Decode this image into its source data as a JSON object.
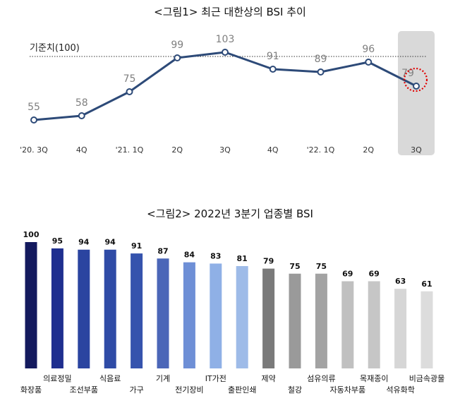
{
  "chart_data": [
    {
      "type": "line",
      "title": "<그림1> 최근 대한상의 BSI 추이",
      "categories": [
        "'20. 3Q",
        "4Q",
        "'21. 1Q",
        "2Q",
        "3Q",
        "4Q",
        "'22. 1Q",
        "2Q",
        "3Q"
      ],
      "values": [
        55,
        58,
        75,
        99,
        103,
        91,
        89,
        96,
        79
      ],
      "reference_line": {
        "label": "기준치(100)",
        "value": 100
      },
      "highlight": {
        "category": "3Q",
        "value": 79
      },
      "ylim": [
        45,
        110
      ],
      "colors": {
        "line": "#2d4a78",
        "label": "#7f7f7f",
        "highlight_box": "#d9d9d9",
        "highlight_circle": "#e00000"
      }
    },
    {
      "type": "bar",
      "title": "<그림2> 2022년 3분기 업종별 BSI",
      "categories": [
        "화장품",
        "의료정밀",
        "조선부품",
        "식음료",
        "가구",
        "기계",
        "전기장비",
        "IT가전",
        "출판인쇄",
        "제약",
        "철강",
        "섬유의류",
        "자동차부품",
        "목재종이",
        "석유화학",
        "비금속광물"
      ],
      "values": [
        100,
        95,
        94,
        94,
        91,
        87,
        84,
        83,
        81,
        79,
        75,
        75,
        69,
        69,
        63,
        61
      ],
      "ylim": [
        0,
        100
      ],
      "colors": [
        "#141a5e",
        "#1f2f8f",
        "#2b44a0",
        "#2f4ba6",
        "#3553ad",
        "#4b66b8",
        "#6e8fd6",
        "#8fb0e6",
        "#9ebbe8",
        "#7a7a7a",
        "#9a9a9a",
        "#a3a3a3",
        "#c0c0c0",
        "#c6c6c6",
        "#d6d6d6",
        "#dcdcdc"
      ]
    }
  ]
}
